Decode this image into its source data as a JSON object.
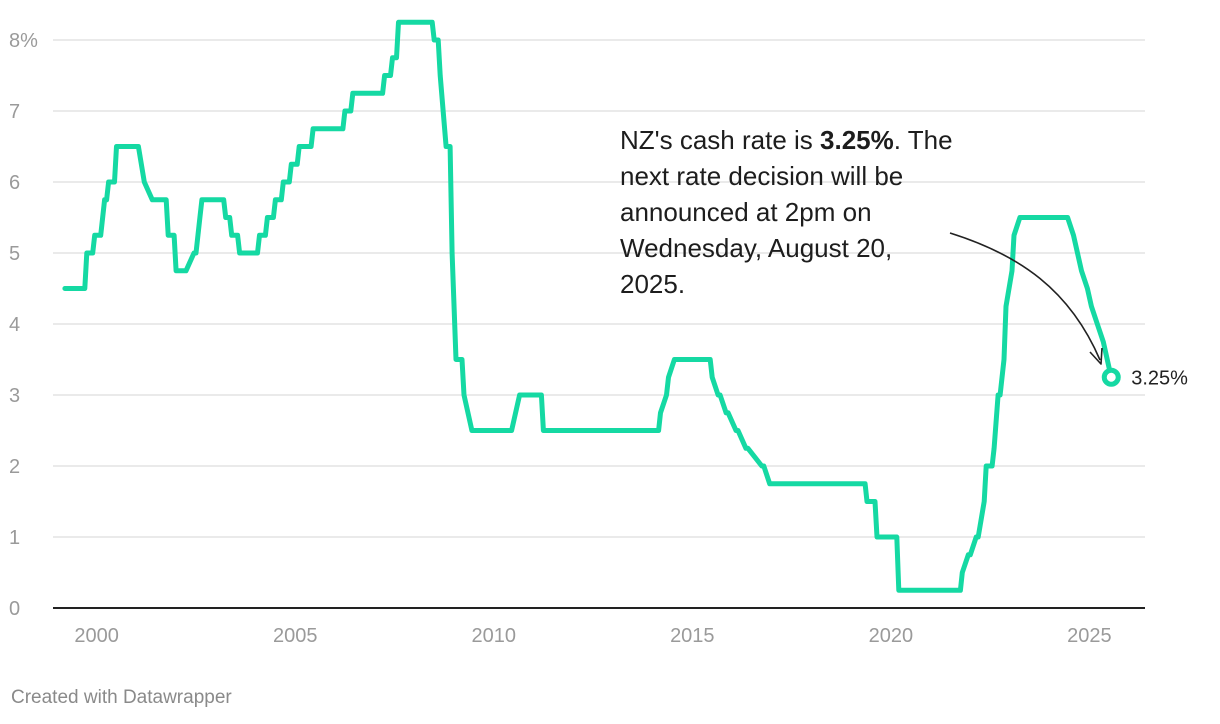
{
  "colors": {
    "line": "#15d9a3",
    "grid": "#dedede",
    "axis": "#222222",
    "ticks": "#9a9a9a",
    "text": "#1d1d1d"
  },
  "annotation": {
    "text_before": "NZ's cash rate is ",
    "text_bold": "3.25%",
    "text_after": ". The next rate decision will be announced at 2pm on Wednesday, August 20, 2025."
  },
  "credit": "Created with Datawrapper",
  "chart_data": {
    "type": "line",
    "title": "",
    "xlabel": "",
    "ylabel": "",
    "xlim": [
      1998.9,
      2026.4
    ],
    "ylim": [
      0,
      8.2
    ],
    "grid": true,
    "x_ticks": [
      2000,
      2005,
      2010,
      2015,
      2020,
      2025
    ],
    "x_tick_labels": [
      "2000",
      "2005",
      "2010",
      "2015",
      "2020",
      "2025"
    ],
    "y_ticks": [
      0,
      1,
      2,
      3,
      4,
      5,
      6,
      7,
      8
    ],
    "y_tick_labels": [
      "0",
      "1",
      "2",
      "3",
      "4",
      "5",
      "6",
      "7",
      "8%"
    ],
    "end_label": "3.25%",
    "series": [
      {
        "x": [
          1999.2,
          1999.7,
          1999.75,
          1999.9,
          1999.95,
          2000.1,
          2000.2,
          2000.25,
          2000.3,
          2000.45,
          2000.5,
          2001.05,
          2001.2,
          2001.4,
          2001.55,
          2001.75,
          2001.8,
          2001.95,
          2002.0,
          2002.2,
          2002.25,
          2002.45,
          2002.5,
          2002.6,
          2002.65,
          2003.2,
          2003.25,
          2003.35,
          2003.4,
          2003.55,
          2003.6,
          2004.05,
          2004.1,
          2004.25,
          2004.3,
          2004.45,
          2004.5,
          2004.65,
          2004.7,
          2004.85,
          2004.9,
          2005.05,
          2005.1,
          2005.4,
          2005.45,
          2006.2,
          2006.25,
          2006.4,
          2006.45,
          2006.55,
          2006.6,
          2007.2,
          2007.25,
          2007.4,
          2007.45,
          2007.55,
          2007.6,
          2008.45,
          2008.5,
          2008.6,
          2008.65,
          2008.8,
          2008.9,
          2008.95,
          2009.05,
          2009.2,
          2009.25,
          2009.45,
          2009.5,
          2010.45,
          2010.65,
          2011.2,
          2011.25,
          2014.15,
          2014.2,
          2014.35,
          2014.4,
          2014.55,
          2014.6,
          2015.45,
          2015.5,
          2015.65,
          2015.7,
          2015.85,
          2015.9,
          2016.1,
          2016.15,
          2016.35,
          2016.4,
          2016.75,
          2016.8,
          2016.95,
          2017.0,
          2019.35,
          2019.4,
          2019.6,
          2019.65,
          2020.15,
          2020.2,
          2021.75,
          2021.8,
          2021.95,
          2022.0,
          2022.15,
          2022.2,
          2022.35,
          2022.4,
          2022.55,
          2022.6,
          2022.7,
          2022.75,
          2022.85,
          2022.9,
          2023.05,
          2023.1,
          2023.25,
          2023.4,
          2024.45,
          2024.6,
          2024.8,
          2024.95,
          2025.05,
          2025.2,
          2025.35,
          2025.55
        ],
        "y": [
          4.5,
          4.5,
          5.0,
          5.0,
          5.25,
          5.25,
          5.75,
          5.75,
          6.0,
          6.0,
          6.5,
          6.5,
          6.0,
          5.75,
          5.75,
          5.75,
          5.25,
          5.25,
          4.75,
          4.75,
          4.75,
          5.0,
          5.0,
          5.5,
          5.75,
          5.75,
          5.5,
          5.5,
          5.25,
          5.25,
          5.0,
          5.0,
          5.25,
          5.25,
          5.5,
          5.5,
          5.75,
          5.75,
          6.0,
          6.0,
          6.25,
          6.25,
          6.5,
          6.5,
          6.75,
          6.75,
          7.0,
          7.0,
          7.25,
          7.25,
          7.25,
          7.25,
          7.5,
          7.5,
          7.75,
          7.75,
          8.25,
          8.25,
          8.0,
          8.0,
          7.5,
          6.5,
          6.5,
          5.0,
          3.5,
          3.5,
          3.0,
          2.5,
          2.5,
          2.5,
          3.0,
          3.0,
          2.5,
          2.5,
          2.75,
          3.0,
          3.25,
          3.5,
          3.5,
          3.5,
          3.25,
          3.0,
          3.0,
          2.75,
          2.75,
          2.5,
          2.5,
          2.25,
          2.25,
          2.0,
          2.0,
          1.75,
          1.75,
          1.75,
          1.5,
          1.5,
          1.0,
          1.0,
          0.25,
          0.25,
          0.5,
          0.75,
          0.75,
          1.0,
          1.0,
          1.5,
          2.0,
          2.0,
          2.25,
          3.0,
          3.0,
          3.5,
          4.25,
          4.75,
          5.25,
          5.5,
          5.5,
          5.5,
          5.25,
          4.75,
          4.5,
          4.25,
          4.0,
          3.75,
          3.25
        ]
      }
    ]
  }
}
